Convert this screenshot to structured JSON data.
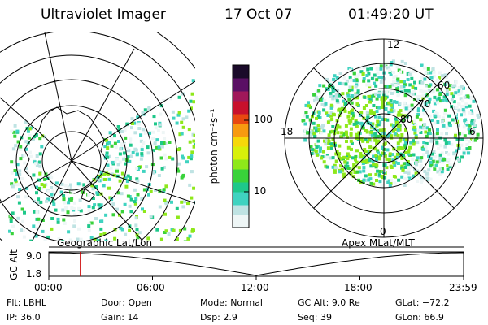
{
  "header": {
    "instrument": "Ultraviolet Imager",
    "date": "17 Oct 07",
    "time": "01:49:20 UT"
  },
  "colorbar": {
    "label": "photon cm⁻²s⁻¹",
    "ticks": [
      "100",
      "10"
    ]
  },
  "polar_plot": {
    "mlt_labels": {
      "top": "12",
      "right": "6",
      "bottom": "0",
      "left": "18"
    },
    "lat_labels": [
      "60",
      "70",
      "80"
    ]
  },
  "timeline": {
    "y_axis_label": "GC Alt",
    "y_ticks": [
      "9.0",
      "1.8"
    ],
    "left_caption": "Geographic Lat/Lon",
    "right_caption": "Apex MLat/MLT",
    "x_ticks": [
      "00:00",
      "06:00",
      "12:00",
      "18:00",
      "23:59"
    ],
    "current_time_fraction": 0.076
  },
  "status": {
    "row1": [
      {
        "key": "Flt:",
        "value": "LBHL"
      },
      {
        "key": "Door:",
        "value": "Open"
      },
      {
        "key": "Mode:",
        "value": "Normal"
      },
      {
        "key": "GC Alt:",
        "value": "9.0 Re"
      },
      {
        "key": "GLat:",
        "value": "−72.2"
      }
    ],
    "row2": [
      {
        "key": "IP:",
        "value": "36.0"
      },
      {
        "key": "Gain:",
        "value": "14"
      },
      {
        "key": "Dsp:",
        "value": "2.9"
      },
      {
        "key": "Seq:",
        "value": "39"
      },
      {
        "key": "GLon:",
        "value": "66.9"
      }
    ]
  },
  "colors": {
    "marker": "#cc0000",
    "scale": [
      "#eef6f6",
      "#bfe3e3",
      "#3fd3c0",
      "#1ec88a",
      "#39d23a",
      "#8ee81a",
      "#d8f00a",
      "#f6d80a",
      "#f79a10",
      "#e84810",
      "#c8102c",
      "#a0185a",
      "#5a1064",
      "#1a0a2a"
    ]
  }
}
